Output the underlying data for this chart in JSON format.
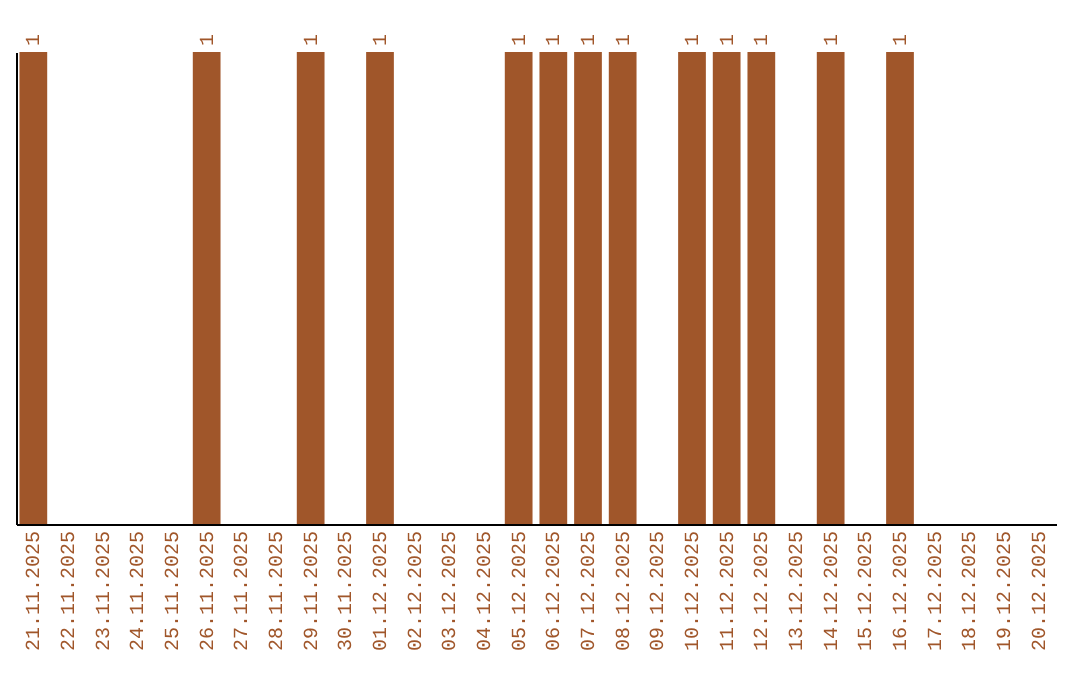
{
  "chart_data": {
    "type": "bar",
    "categories": [
      "21.11.2025",
      "22.11.2025",
      "23.11.2025",
      "24.11.2025",
      "25.11.2025",
      "26.11.2025",
      "27.11.2025",
      "28.11.2025",
      "29.11.2025",
      "30.11.2025",
      "01.12.2025",
      "02.12.2025",
      "03.12.2025",
      "04.12.2025",
      "05.12.2025",
      "06.12.2025",
      "07.12.2025",
      "08.12.2025",
      "09.12.2025",
      "10.12.2025",
      "11.12.2025",
      "12.12.2025",
      "13.12.2025",
      "14.12.2025",
      "15.12.2025",
      "16.12.2025",
      "17.12.2025",
      "18.12.2025",
      "19.12.2025",
      "20.12.2025"
    ],
    "values": [
      1,
      0,
      0,
      0,
      0,
      1,
      0,
      0,
      1,
      0,
      1,
      0,
      0,
      0,
      1,
      1,
      1,
      1,
      0,
      1,
      1,
      1,
      0,
      1,
      0,
      1,
      0,
      0,
      0,
      0
    ],
    "value_labels": [
      "1",
      null,
      null,
      null,
      null,
      "1",
      null,
      null,
      "1",
      null,
      "1",
      null,
      null,
      null,
      "1",
      "1",
      "1",
      "1",
      null,
      "1",
      "1",
      "1",
      null,
      "1",
      null,
      "1",
      null,
      null,
      null,
      null
    ],
    "color": "#a0562a"
  }
}
